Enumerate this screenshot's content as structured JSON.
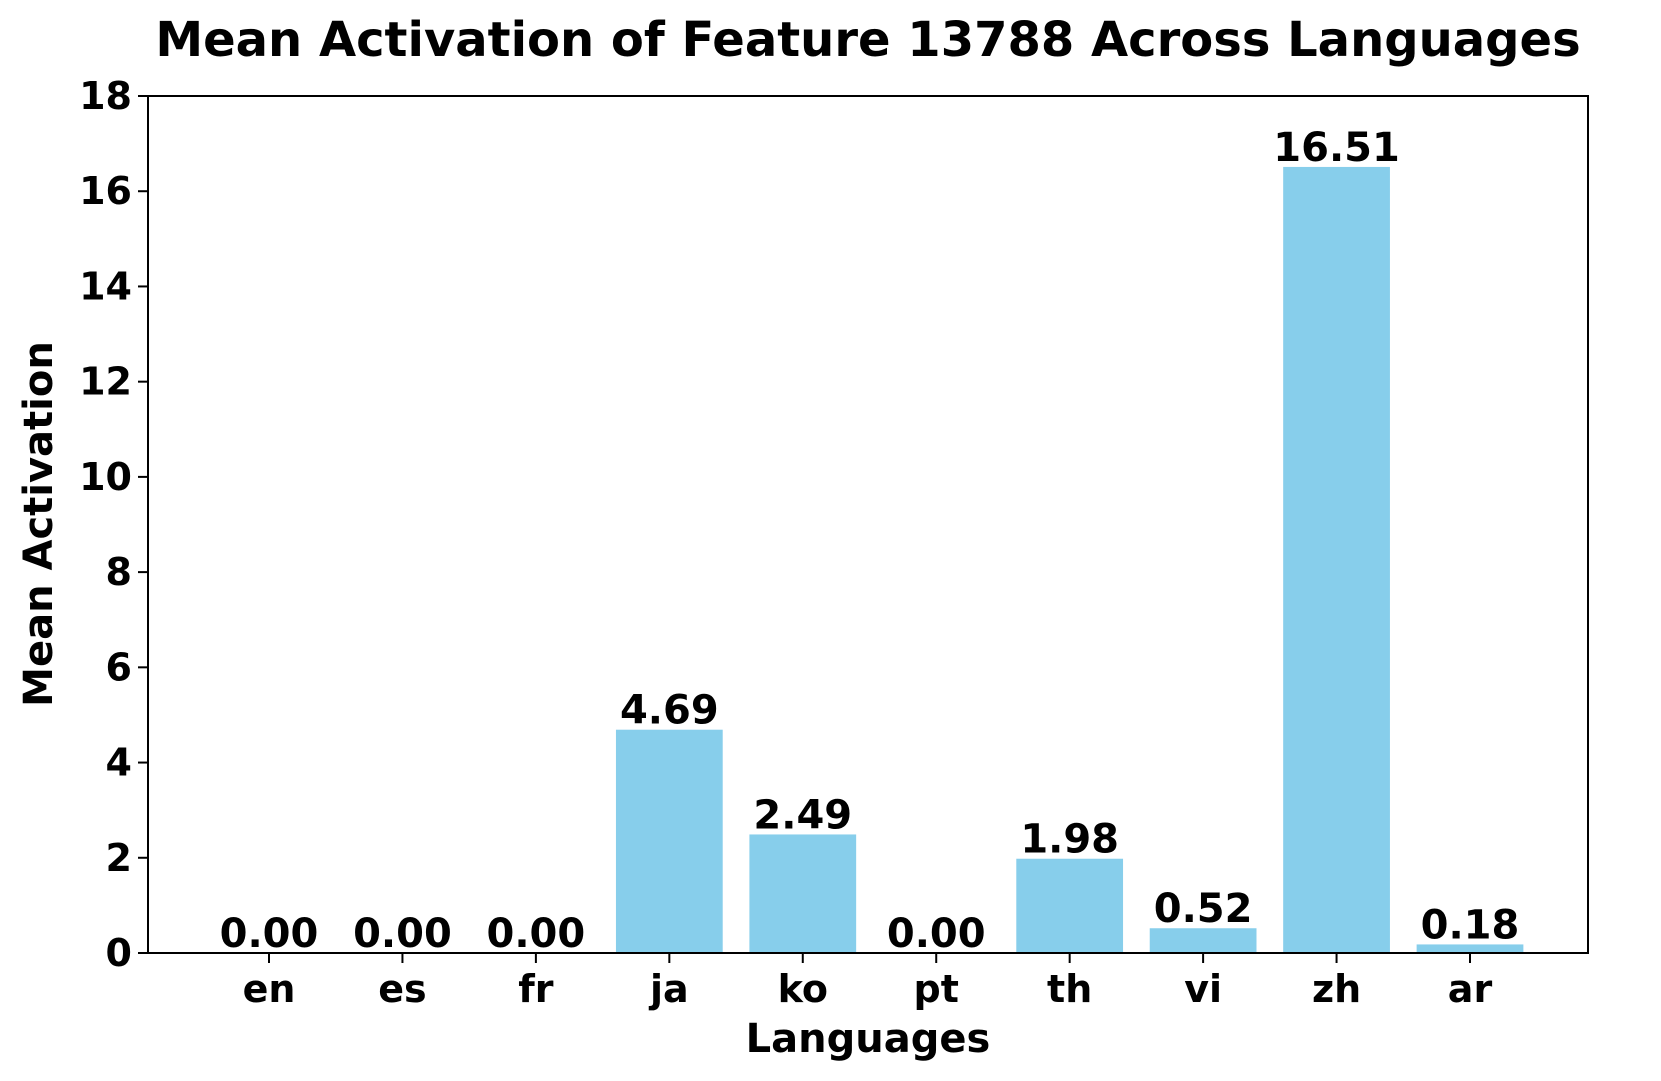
{
  "chart_data": {
    "type": "bar",
    "title": "Mean Activation of Feature 13788 Across Languages",
    "xlabel": "Languages",
    "ylabel": "Mean Activation",
    "categories": [
      "en",
      "es",
      "fr",
      "ja",
      "ko",
      "pt",
      "th",
      "vi",
      "zh",
      "ar"
    ],
    "values": [
      0.0,
      0.0,
      0.0,
      4.69,
      2.49,
      0.0,
      1.98,
      0.52,
      16.51,
      0.18
    ],
    "value_labels": [
      "0.00",
      "0.00",
      "0.00",
      "4.69",
      "2.49",
      "0.00",
      "1.98",
      "0.52",
      "16.51",
      "0.18"
    ],
    "ylim": [
      0,
      18
    ],
    "yticks": [
      0,
      2,
      4,
      6,
      8,
      10,
      12,
      14,
      16,
      18
    ],
    "ytick_labels": [
      "0",
      "2",
      "4",
      "6",
      "8",
      "10",
      "12",
      "14",
      "16",
      "18"
    ],
    "grid": false,
    "bar_color": "#87CEEB"
  }
}
